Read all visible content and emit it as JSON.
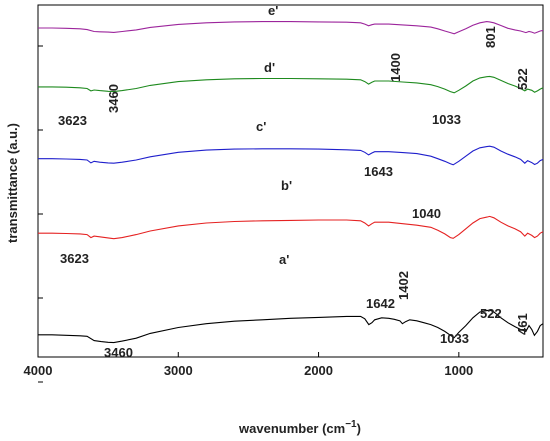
{
  "chart_data": {
    "type": "line",
    "xlabel": "wavenumber (cm",
    "xlabel_sup": "−1",
    "xlabel_close": ")",
    "ylabel": "transmittance (a.u.)",
    "x_reversed": true,
    "xlim": [
      4000,
      400
    ],
    "x_ticks": [
      4000,
      3000,
      2000,
      1000
    ],
    "x_tick_labels": [
      "4000",
      "3000",
      "2000",
      "1000"
    ],
    "y_ticks_count": 5,
    "grid": false,
    "series": [
      {
        "name": "a'",
        "color": "#000000",
        "values": [
          [
            4000,
            0.895
          ],
          [
            3900,
            0.895
          ],
          [
            3800,
            0.9
          ],
          [
            3700,
            0.905
          ],
          [
            3650,
            0.91
          ],
          [
            3600,
            0.955
          ],
          [
            3550,
            0.965
          ],
          [
            3500,
            0.972
          ],
          [
            3460,
            0.975
          ],
          [
            3400,
            0.96
          ],
          [
            3300,
            0.93
          ],
          [
            3200,
            0.88
          ],
          [
            3000,
            0.82
          ],
          [
            2800,
            0.78
          ],
          [
            2600,
            0.755
          ],
          [
            2400,
            0.74
          ],
          [
            2200,
            0.725
          ],
          [
            2000,
            0.715
          ],
          [
            1800,
            0.705
          ],
          [
            1700,
            0.705
          ],
          [
            1670,
            0.73
          ],
          [
            1642,
            0.79
          ],
          [
            1620,
            0.77
          ],
          [
            1600,
            0.74
          ],
          [
            1550,
            0.72
          ],
          [
            1500,
            0.725
          ],
          [
            1460,
            0.735
          ],
          [
            1420,
            0.75
          ],
          [
            1402,
            0.78
          ],
          [
            1380,
            0.76
          ],
          [
            1350,
            0.74
          ],
          [
            1300,
            0.75
          ],
          [
            1250,
            0.77
          ],
          [
            1200,
            0.79
          ],
          [
            1150,
            0.82
          ],
          [
            1100,
            0.86
          ],
          [
            1060,
            0.9
          ],
          [
            1033,
            0.925
          ],
          [
            1000,
            0.87
          ],
          [
            950,
            0.8
          ],
          [
            900,
            0.72
          ],
          [
            850,
            0.66
          ],
          [
            800,
            0.645
          ],
          [
            780,
            0.64
          ],
          [
            750,
            0.66
          ],
          [
            700,
            0.72
          ],
          [
            650,
            0.77
          ],
          [
            600,
            0.81
          ],
          [
            560,
            0.84
          ],
          [
            522,
            0.86
          ],
          [
            500,
            0.8
          ],
          [
            480,
            0.84
          ],
          [
            461,
            0.9
          ],
          [
            440,
            0.86
          ],
          [
            420,
            0.8
          ],
          [
            400,
            0.78
          ]
        ]
      },
      {
        "name": "b'",
        "color": "#e52222",
        "values": [
          [
            4000,
            0.66
          ],
          [
            3900,
            0.66
          ],
          [
            3800,
            0.665
          ],
          [
            3700,
            0.67
          ],
          [
            3650,
            0.68
          ],
          [
            3623,
            0.72
          ],
          [
            3600,
            0.7
          ],
          [
            3560,
            0.71
          ],
          [
            3500,
            0.725
          ],
          [
            3460,
            0.735
          ],
          [
            3400,
            0.72
          ],
          [
            3300,
            0.68
          ],
          [
            3200,
            0.63
          ],
          [
            3000,
            0.56
          ],
          [
            2800,
            0.52
          ],
          [
            2600,
            0.5
          ],
          [
            2400,
            0.49
          ],
          [
            2200,
            0.485
          ],
          [
            2000,
            0.48
          ],
          [
            1800,
            0.48
          ],
          [
            1700,
            0.49
          ],
          [
            1670,
            0.52
          ],
          [
            1643,
            0.56
          ],
          [
            1620,
            0.53
          ],
          [
            1600,
            0.51
          ],
          [
            1500,
            0.51
          ],
          [
            1400,
            0.53
          ],
          [
            1300,
            0.55
          ],
          [
            1200,
            0.58
          ],
          [
            1150,
            0.62
          ],
          [
            1100,
            0.67
          ],
          [
            1060,
            0.72
          ],
          [
            1040,
            0.73
          ],
          [
            1000,
            0.68
          ],
          [
            950,
            0.6
          ],
          [
            900,
            0.52
          ],
          [
            850,
            0.46
          ],
          [
            800,
            0.44
          ],
          [
            780,
            0.43
          ],
          [
            750,
            0.45
          ],
          [
            700,
            0.51
          ],
          [
            650,
            0.56
          ],
          [
            600,
            0.6
          ],
          [
            560,
            0.64
          ],
          [
            530,
            0.7
          ],
          [
            510,
            0.66
          ],
          [
            480,
            0.69
          ],
          [
            460,
            0.72
          ],
          [
            440,
            0.7
          ],
          [
            420,
            0.66
          ],
          [
            400,
            0.64
          ]
        ]
      },
      {
        "name": "c'",
        "color": "#1f1fcc",
        "values": [
          [
            4000,
            0.48
          ],
          [
            3900,
            0.48
          ],
          [
            3800,
            0.485
          ],
          [
            3700,
            0.49
          ],
          [
            3650,
            0.5
          ],
          [
            3623,
            0.545
          ],
          [
            3600,
            0.52
          ],
          [
            3560,
            0.535
          ],
          [
            3500,
            0.545
          ],
          [
            3460,
            0.55
          ],
          [
            3400,
            0.535
          ],
          [
            3300,
            0.5
          ],
          [
            3200,
            0.45
          ],
          [
            3000,
            0.38
          ],
          [
            2800,
            0.345
          ],
          [
            2600,
            0.33
          ],
          [
            2400,
            0.325
          ],
          [
            2200,
            0.325
          ],
          [
            2000,
            0.33
          ],
          [
            1800,
            0.34
          ],
          [
            1700,
            0.35
          ],
          [
            1670,
            0.38
          ],
          [
            1643,
            0.42
          ],
          [
            1620,
            0.39
          ],
          [
            1600,
            0.37
          ],
          [
            1500,
            0.37
          ],
          [
            1400,
            0.385
          ],
          [
            1300,
            0.4
          ],
          [
            1200,
            0.44
          ],
          [
            1150,
            0.48
          ],
          [
            1100,
            0.52
          ],
          [
            1060,
            0.56
          ],
          [
            1040,
            0.575
          ],
          [
            1000,
            0.52
          ],
          [
            950,
            0.44
          ],
          [
            900,
            0.36
          ],
          [
            850,
            0.31
          ],
          [
            800,
            0.29
          ],
          [
            780,
            0.285
          ],
          [
            750,
            0.3
          ],
          [
            700,
            0.36
          ],
          [
            650,
            0.41
          ],
          [
            600,
            0.45
          ],
          [
            560,
            0.49
          ],
          [
            530,
            0.55
          ],
          [
            510,
            0.51
          ],
          [
            480,
            0.54
          ],
          [
            460,
            0.57
          ],
          [
            440,
            0.55
          ],
          [
            420,
            0.51
          ],
          [
            400,
            0.49
          ]
        ]
      },
      {
        "name": "d'",
        "color": "#1e8a1e",
        "values": [
          [
            4000,
            0.305
          ],
          [
            3900,
            0.305
          ],
          [
            3800,
            0.31
          ],
          [
            3700,
            0.32
          ],
          [
            3650,
            0.33
          ],
          [
            3623,
            0.37
          ],
          [
            3600,
            0.355
          ],
          [
            3560,
            0.365
          ],
          [
            3500,
            0.375
          ],
          [
            3460,
            0.38
          ],
          [
            3400,
            0.365
          ],
          [
            3300,
            0.33
          ],
          [
            3200,
            0.28
          ],
          [
            3000,
            0.22
          ],
          [
            2800,
            0.19
          ],
          [
            2600,
            0.175
          ],
          [
            2400,
            0.17
          ],
          [
            2200,
            0.17
          ],
          [
            2000,
            0.175
          ],
          [
            1800,
            0.18
          ],
          [
            1700,
            0.19
          ],
          [
            1670,
            0.22
          ],
          [
            1643,
            0.26
          ],
          [
            1620,
            0.23
          ],
          [
            1600,
            0.21
          ],
          [
            1500,
            0.21
          ],
          [
            1400,
            0.225
          ],
          [
            1300,
            0.24
          ],
          [
            1200,
            0.27
          ],
          [
            1150,
            0.3
          ],
          [
            1100,
            0.34
          ],
          [
            1060,
            0.38
          ],
          [
            1033,
            0.4
          ],
          [
            1000,
            0.36
          ],
          [
            950,
            0.29
          ],
          [
            900,
            0.21
          ],
          [
            850,
            0.16
          ],
          [
            800,
            0.14
          ],
          [
            780,
            0.135
          ],
          [
            750,
            0.15
          ],
          [
            700,
            0.2
          ],
          [
            650,
            0.25
          ],
          [
            600,
            0.29
          ],
          [
            560,
            0.33
          ],
          [
            530,
            0.37
          ],
          [
            510,
            0.34
          ],
          [
            480,
            0.36
          ],
          [
            460,
            0.39
          ],
          [
            440,
            0.37
          ],
          [
            420,
            0.34
          ],
          [
            400,
            0.32
          ]
        ]
      },
      {
        "name": "e'",
        "color": "#9c259c",
        "values": [
          [
            4000,
            0.145
          ],
          [
            3900,
            0.145
          ],
          [
            3800,
            0.15
          ],
          [
            3700,
            0.16
          ],
          [
            3650,
            0.175
          ],
          [
            3600,
            0.21
          ],
          [
            3560,
            0.215
          ],
          [
            3500,
            0.22
          ],
          [
            3460,
            0.225
          ],
          [
            3400,
            0.21
          ],
          [
            3300,
            0.18
          ],
          [
            3200,
            0.135
          ],
          [
            3000,
            0.08
          ],
          [
            2800,
            0.05
          ],
          [
            2600,
            0.035
          ],
          [
            2400,
            0.03
          ],
          [
            2200,
            0.03
          ],
          [
            2000,
            0.035
          ],
          [
            1800,
            0.04
          ],
          [
            1700,
            0.05
          ],
          [
            1670,
            0.075
          ],
          [
            1643,
            0.105
          ],
          [
            1620,
            0.085
          ],
          [
            1600,
            0.075
          ],
          [
            1500,
            0.075
          ],
          [
            1400,
            0.09
          ],
          [
            1300,
            0.105
          ],
          [
            1200,
            0.13
          ],
          [
            1150,
            0.16
          ],
          [
            1100,
            0.2
          ],
          [
            1060,
            0.23
          ],
          [
            1033,
            0.25
          ],
          [
            1000,
            0.215
          ],
          [
            950,
            0.16
          ],
          [
            900,
            0.095
          ],
          [
            850,
            0.05
          ],
          [
            801,
            0.03
          ],
          [
            780,
            0.035
          ],
          [
            750,
            0.05
          ],
          [
            700,
            0.1
          ],
          [
            650,
            0.15
          ],
          [
            600,
            0.18
          ],
          [
            560,
            0.2
          ],
          [
            522,
            0.23
          ],
          [
            500,
            0.21
          ],
          [
            480,
            0.22
          ],
          [
            460,
            0.24
          ],
          [
            440,
            0.22
          ],
          [
            420,
            0.2
          ],
          [
            400,
            0.19
          ]
        ]
      }
    ],
    "annotations": [
      {
        "text": "e'",
        "series": "e'",
        "kind": "series-label"
      },
      {
        "text": "1400",
        "series": "e'",
        "rotate": true
      },
      {
        "text": "801",
        "series": "e'",
        "rotate": true
      },
      {
        "text": "522",
        "series": "e'",
        "rotate": true
      },
      {
        "text": "d'",
        "series": "d'",
        "kind": "series-label"
      },
      {
        "text": "3623",
        "series": "d'"
      },
      {
        "text": "3460",
        "series": "d'",
        "rotate": true
      },
      {
        "text": "1033",
        "series": "d'"
      },
      {
        "text": "c'",
        "series": "c'",
        "kind": "series-label"
      },
      {
        "text": "1643",
        "series": "c'"
      },
      {
        "text": "1040",
        "series": "c'"
      },
      {
        "text": "b'",
        "series": "b'",
        "kind": "series-label"
      },
      {
        "text": "3623",
        "series": "b'"
      },
      {
        "text": "a'",
        "series": "a'",
        "kind": "series-label"
      },
      {
        "text": "1642",
        "series": "a'"
      },
      {
        "text": "1402",
        "series": "a'",
        "rotate": true
      },
      {
        "text": "3460",
        "series": "a'"
      },
      {
        "text": "1033",
        "series": "a'"
      },
      {
        "text": "522",
        "series": "a'"
      },
      {
        "text": "461",
        "series": "a'",
        "rotate": true
      }
    ]
  }
}
